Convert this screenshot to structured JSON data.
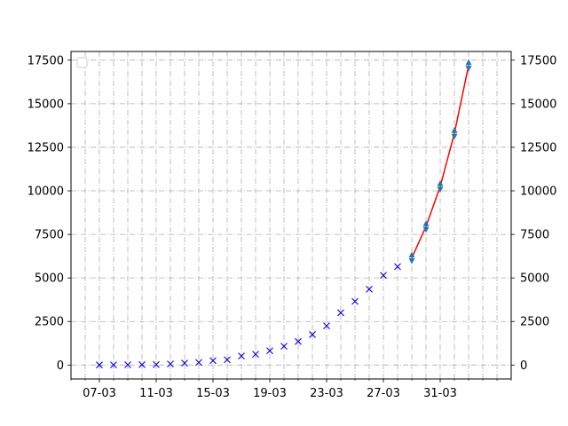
{
  "chart_data": {
    "type": "scatter",
    "title": "",
    "xlabel": "",
    "ylabel": "",
    "xlim": [
      "2020-03-05",
      "2020-04-05"
    ],
    "ylim": [
      -800,
      18000
    ],
    "y_ticks": [
      0,
      2500,
      5000,
      7500,
      10000,
      12500,
      15000,
      17500
    ],
    "y_tick_labels": [
      "0",
      "2500",
      "5000",
      "7500",
      "10000",
      "12500",
      "15000",
      "17500"
    ],
    "x_ticks": [
      "2020-03-07",
      "2020-03-11",
      "2020-03-15",
      "2020-03-19",
      "2020-03-23",
      "2020-03-27",
      "2020-03-31"
    ],
    "x_tick_labels": [
      "07-03",
      "11-03",
      "15-03",
      "19-03",
      "23-03",
      "27-03",
      "31-03"
    ],
    "y_axis_right_mirrored": true,
    "grid": true,
    "grid_style": "dash-dot",
    "legend_position": "upper-left",
    "legend_entries": [],
    "series": [
      {
        "marker": "x",
        "color": "#0000ff",
        "x": [
          "2020-03-07",
          "2020-03-08",
          "2020-03-09",
          "2020-03-10",
          "2020-03-11",
          "2020-03-12",
          "2020-03-13",
          "2020-03-14",
          "2020-03-15",
          "2020-03-16",
          "2020-03-17",
          "2020-03-18",
          "2020-03-19",
          "2020-03-20",
          "2020-03-21",
          "2020-03-22",
          "2020-03-23",
          "2020-03-24",
          "2020-03-25",
          "2020-03-26",
          "2020-03-27",
          "2020-03-28"
        ],
        "y": [
          5,
          10,
          15,
          20,
          30,
          60,
          110,
          150,
          250,
          300,
          520,
          620,
          820,
          1080,
          1350,
          1750,
          2250,
          3000,
          3650,
          4350,
          5150,
          5650
        ]
      },
      {
        "marker": "^",
        "color": "#1f77b4",
        "x": [
          "2020-03-29",
          "2020-03-30",
          "2020-03-31",
          "2020-04-01",
          "2020-04-02"
        ],
        "y": [
          6300,
          8100,
          10400,
          13450,
          17350
        ]
      },
      {
        "marker": "v",
        "color": "#1f77b4",
        "x": [
          "2020-03-29",
          "2020-03-30",
          "2020-03-31",
          "2020-04-01",
          "2020-04-02"
        ],
        "y": [
          6000,
          7800,
          10100,
          13150,
          17050
        ]
      },
      {
        "marker": "line",
        "color": "#ff0000",
        "x": [
          "2020-03-29",
          "2020-03-30",
          "2020-03-31",
          "2020-04-01",
          "2020-04-02"
        ],
        "y": [
          6150,
          7950,
          10250,
          13300,
          17200
        ]
      }
    ]
  }
}
